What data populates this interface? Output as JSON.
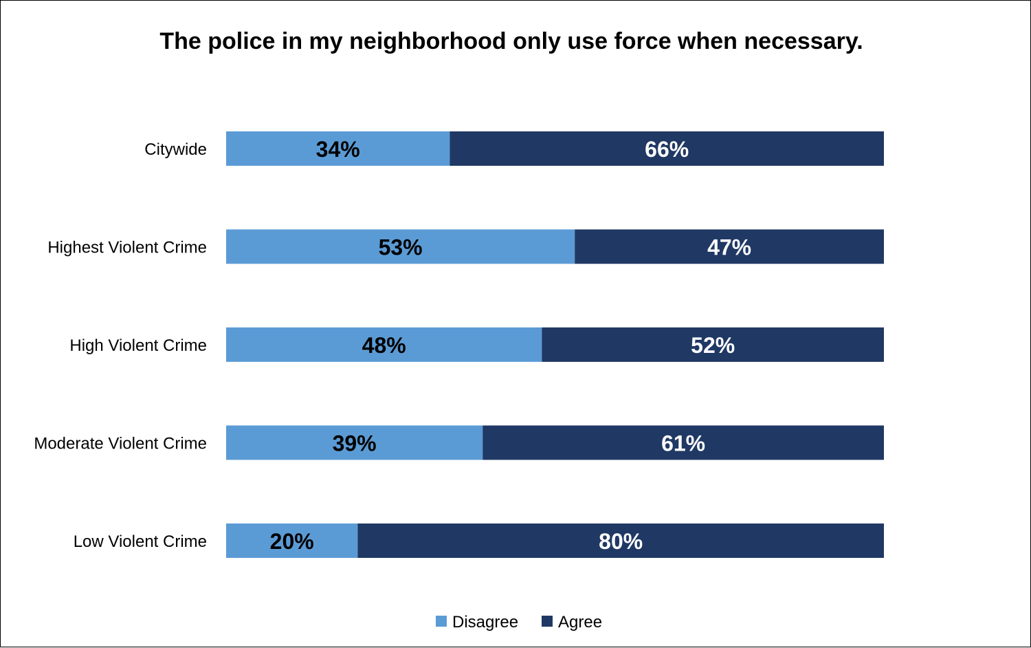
{
  "chart_data": {
    "type": "bar",
    "orientation": "horizontal",
    "stacked": true,
    "title": "The police in my neighborhood only use force when necessary.",
    "categories": [
      "Citywide",
      "Highest Violent Crime",
      "High Violent Crime",
      "Moderate Violent Crime",
      "Low Violent Crime"
    ],
    "series": [
      {
        "name": "Disagree",
        "color": "#5b9bd5",
        "label_color": "#000000",
        "values": [
          34,
          53,
          48,
          39,
          20
        ],
        "labels": [
          "34%",
          "53%",
          "48%",
          "39%",
          "20%"
        ]
      },
      {
        "name": "Agree",
        "color": "#203864",
        "label_color": "#ffffff",
        "values": [
          66,
          47,
          52,
          61,
          80
        ],
        "labels": [
          "66%",
          "47%",
          "52%",
          "61%",
          "80%"
        ]
      }
    ],
    "xlim": [
      0,
      100
    ],
    "xlabel": "",
    "ylabel": "",
    "grid": false,
    "legend_position": "bottom-center"
  }
}
